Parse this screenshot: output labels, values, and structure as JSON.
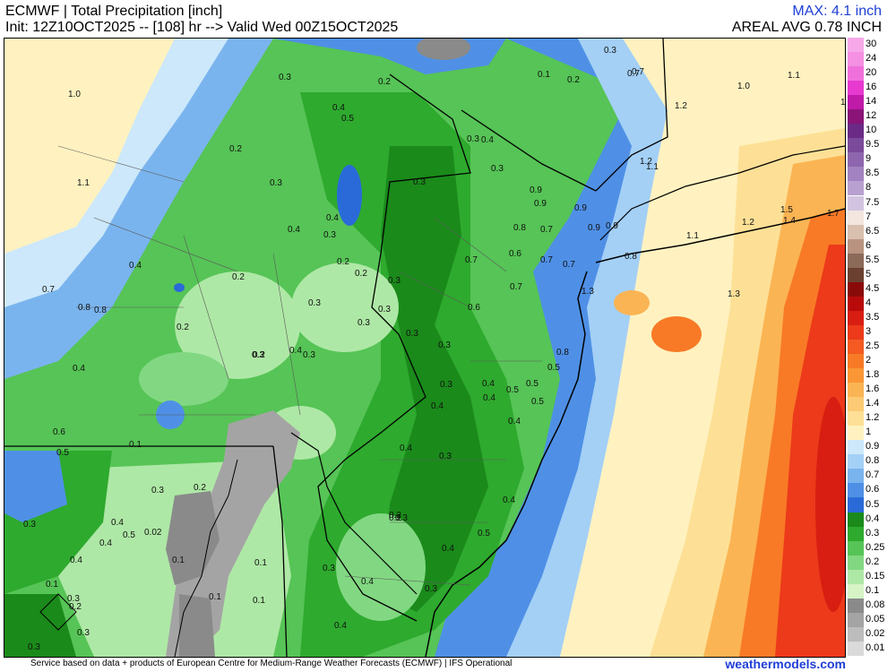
{
  "header": {
    "title": "ECMWF | Total Precipitation [inch]",
    "init": "Init: 12Z10OCT2025 -- [108] hr --> Valid Wed 00Z15OCT2025",
    "max": "MAX: 4.1 inch",
    "areal_avg": "AREAL AVG 0.78 INCH"
  },
  "footer": {
    "credit": "Service based on data + products of European Centre for Medium-Range Weather Forecasts (ECMWF) | IFS Operational",
    "brand": "weathermodels.com"
  },
  "legend": {
    "items": [
      {
        "label": "30",
        "color": "#f7a8e8"
      },
      {
        "label": "24",
        "color": "#f590e2"
      },
      {
        "label": "20",
        "color": "#f070db"
      },
      {
        "label": "16",
        "color": "#e83ad0"
      },
      {
        "label": "14",
        "color": "#c01aa8"
      },
      {
        "label": "12",
        "color": "#8a1478"
      },
      {
        "label": "10",
        "color": "#6a2a86"
      },
      {
        "label": "9.5",
        "color": "#7c4a9a"
      },
      {
        "label": "9",
        "color": "#8e66ae"
      },
      {
        "label": "8.5",
        "color": "#a282c0"
      },
      {
        "label": "8",
        "color": "#b8a0d0"
      },
      {
        "label": "7.5",
        "color": "#d2c4e0"
      },
      {
        "label": "7",
        "color": "#f2e6de"
      },
      {
        "label": "6.5",
        "color": "#d8bfae"
      },
      {
        "label": "6",
        "color": "#b89480"
      },
      {
        "label": "5.5",
        "color": "#8c6a5a"
      },
      {
        "label": "5",
        "color": "#6a4030"
      },
      {
        "label": "4.5",
        "color": "#8a0a0a"
      },
      {
        "label": "4",
        "color": "#b80a0a"
      },
      {
        "label": "3.5",
        "color": "#d81e12"
      },
      {
        "label": "3",
        "color": "#ec3a1a"
      },
      {
        "label": "2.5",
        "color": "#f45a22"
      },
      {
        "label": "2",
        "color": "#f87a26"
      },
      {
        "label": "1.8",
        "color": "#fa9634"
      },
      {
        "label": "1.6",
        "color": "#fbb454"
      },
      {
        "label": "1.4",
        "color": "#fcca74"
      },
      {
        "label": "1.2",
        "color": "#fde096"
      },
      {
        "label": "1",
        "color": "#fff2c0"
      },
      {
        "label": "0.9",
        "color": "#cce8fa"
      },
      {
        "label": "0.8",
        "color": "#a4d0f6"
      },
      {
        "label": "0.7",
        "color": "#7ab4ee"
      },
      {
        "label": "0.6",
        "color": "#4f90e6"
      },
      {
        "label": "0.5",
        "color": "#2a6ad8"
      },
      {
        "label": "0.4",
        "color": "#1a8a1a"
      },
      {
        "label": "0.3",
        "color": "#2eaa2e"
      },
      {
        "label": "0.25",
        "color": "#56c456"
      },
      {
        "label": "0.2",
        "color": "#82d882"
      },
      {
        "label": "0.15",
        "color": "#aee8a6"
      },
      {
        "label": "0.1",
        "color": "#d6f4c6"
      },
      {
        "label": "0.08",
        "color": "#8a8a8a"
      },
      {
        "label": "0.05",
        "color": "#a4a4a4"
      },
      {
        "label": "0.02",
        "color": "#bcbcbc"
      },
      {
        "label": "0.01",
        "color": "#dadada"
      }
    ]
  },
  "map_labels": [
    {
      "text": "1.0"
    },
    {
      "text": "1.1"
    },
    {
      "text": "0.7"
    },
    {
      "text": "0.8"
    },
    {
      "text": "0.8"
    },
    {
      "text": "0.4"
    },
    {
      "text": "0.4"
    },
    {
      "text": "0.6"
    },
    {
      "text": "0.5"
    },
    {
      "text": "0.2"
    },
    {
      "text": "0.3"
    },
    {
      "text": "0.2"
    },
    {
      "text": "0.2"
    },
    {
      "text": "0.3"
    },
    {
      "text": "0.4"
    },
    {
      "text": "0.5"
    },
    {
      "text": "0.4"
    },
    {
      "text": "0.3"
    },
    {
      "text": "0.4"
    },
    {
      "text": "0.2"
    },
    {
      "text": "0.2"
    },
    {
      "text": "0.3"
    },
    {
      "text": "0.3"
    },
    {
      "text": "0.3"
    },
    {
      "text": "0.3"
    },
    {
      "text": "0.3"
    },
    {
      "text": "0.3"
    },
    {
      "text": "0.3"
    },
    {
      "text": "0.2"
    },
    {
      "text": "0.4"
    },
    {
      "text": "0.3"
    },
    {
      "text": "0.4"
    },
    {
      "text": "0.02"
    },
    {
      "text": "0.1"
    },
    {
      "text": "0.1"
    },
    {
      "text": "0.1"
    },
    {
      "text": "0.1"
    },
    {
      "text": "0.1"
    },
    {
      "text": "0.4"
    },
    {
      "text": "0.3"
    },
    {
      "text": "0.4"
    },
    {
      "text": "0.3"
    },
    {
      "text": "0.2"
    },
    {
      "text": "0.3"
    },
    {
      "text": "0.3"
    },
    {
      "text": "0.5"
    },
    {
      "text": "0.3"
    },
    {
      "text": "0.4"
    },
    {
      "text": "0.3"
    },
    {
      "text": "0.4"
    },
    {
      "text": "0.4"
    },
    {
      "text": "0.2"
    },
    {
      "text": "0.3"
    },
    {
      "text": "0.3"
    },
    {
      "text": "0.4"
    },
    {
      "text": "0.3"
    },
    {
      "text": "0.4"
    },
    {
      "text": "0.4"
    },
    {
      "text": "0.3"
    },
    {
      "text": "0.2"
    },
    {
      "text": "0.1"
    },
    {
      "text": "0.2"
    },
    {
      "text": "0.4"
    },
    {
      "text": "0.4"
    },
    {
      "text": "0.5"
    },
    {
      "text": "0.4"
    },
    {
      "text": "0.5"
    },
    {
      "text": "0.5"
    },
    {
      "text": "0.5"
    },
    {
      "text": "0.5"
    },
    {
      "text": "0.6"
    },
    {
      "text": "0.6"
    },
    {
      "text": "0.7"
    },
    {
      "text": "0.7"
    },
    {
      "text": "0.7"
    },
    {
      "text": "0.7"
    },
    {
      "text": "0.8"
    },
    {
      "text": "0.8"
    },
    {
      "text": "0.9"
    },
    {
      "text": "0.9"
    },
    {
      "text": "0.9"
    },
    {
      "text": "0.7"
    },
    {
      "text": "0.3"
    },
    {
      "text": "0.3"
    },
    {
      "text": "0.1"
    },
    {
      "text": "0.2"
    },
    {
      "text": "0.3"
    },
    {
      "text": "0.7"
    },
    {
      "text": "1.0"
    },
    {
      "text": "1.1"
    },
    {
      "text": "1.2"
    },
    {
      "text": "1.1"
    },
    {
      "text": "1.2"
    },
    {
      "text": "1.5"
    },
    {
      "text": "1.4"
    },
    {
      "text": "1.7"
    },
    {
      "text": "1.1"
    },
    {
      "text": "1.3"
    },
    {
      "text": "0.8"
    },
    {
      "text": "0.9"
    },
    {
      "text": "0.9"
    },
    {
      "text": "1.2"
    },
    {
      "text": "0.7"
    },
    {
      "text": "1.3"
    },
    {
      "text": "0.3"
    },
    {
      "text": "0.4"
    },
    {
      "text": "0.2"
    },
    {
      "text": "1.1"
    }
  ]
}
